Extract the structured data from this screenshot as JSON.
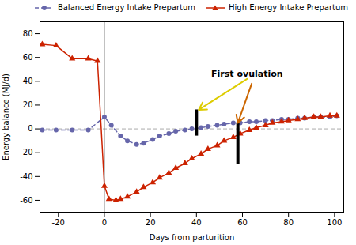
{
  "chart_data": {
    "type": "line",
    "xlabel": "Days from parturition",
    "ylabel": "Energy balance (MJ/d)",
    "xlim": [
      -28,
      104
    ],
    "ylim": [
      -70,
      90
    ],
    "xticks": [
      -20,
      0,
      20,
      40,
      60,
      80,
      100
    ],
    "yticks": [
      -60,
      -40,
      -20,
      0,
      20,
      40,
      60,
      80
    ],
    "legend": "upper right",
    "series": [
      {
        "name": "Balanced Energy Intake Prepartum",
        "color": "#6666aa",
        "marker": "circle",
        "line_style": "dashed",
        "x": [
          -27,
          -21,
          -14,
          -7,
          0,
          3,
          7,
          10,
          14,
          17,
          21,
          24,
          28,
          31,
          35,
          38,
          42,
          45,
          49,
          52,
          56,
          59,
          63,
          66,
          70,
          73,
          77,
          80,
          84,
          87,
          91,
          94,
          98,
          101
        ],
        "values": [
          -1,
          -1,
          -1,
          -1,
          10,
          3,
          -6,
          -10,
          -13,
          -12,
          -9,
          -6,
          -4,
          -2,
          -1,
          0,
          1,
          2,
          3,
          4,
          5,
          5,
          6,
          6,
          7,
          7,
          8,
          8,
          9,
          9,
          10,
          10,
          10,
          11
        ]
      },
      {
        "name": "High Energy Intake Prepartum",
        "color": "#cc2200",
        "marker": "triangle",
        "line_style": "solid",
        "x": [
          -27,
          -21,
          -14,
          -7,
          -3,
          0,
          2,
          5,
          7,
          10,
          14,
          17,
          21,
          24,
          28,
          31,
          35,
          38,
          42,
          45,
          49,
          52,
          56,
          59,
          63,
          66,
          70,
          73,
          77,
          80,
          84,
          87,
          91,
          94,
          98,
          101
        ],
        "values": [
          71,
          70,
          59,
          59,
          57,
          -48,
          -59,
          -60,
          -59,
          -57,
          -53,
          -49,
          -45,
          -41,
          -37,
          -33,
          -29,
          -25,
          -21,
          -17,
          -14,
          -10,
          -7,
          -4,
          -1,
          1,
          3,
          5,
          6,
          7,
          8,
          9,
          10,
          10,
          11,
          11
        ]
      }
    ],
    "hlines": [
      {
        "y": 0,
        "color": "#aaaaaa",
        "line_style": "dashed"
      }
    ],
    "vlines": [
      {
        "x": 0,
        "color": "#777777",
        "line_style": "solid"
      }
    ],
    "vertical_bars": [
      {
        "x": 40,
        "y1": -6,
        "y2": 16,
        "color": "#000000"
      },
      {
        "x": 58,
        "y1": -30,
        "y2": 5,
        "color": "#000000"
      }
    ],
    "annotations": [
      {
        "text": "First ovulation",
        "x": 62,
        "y": 44
      }
    ],
    "arrows": [
      {
        "x1": 62,
        "y1": 42,
        "x2": 41,
        "y2": 16,
        "color": "#ddcc00"
      },
      {
        "x1": 64,
        "y1": 38,
        "x2": 58,
        "y2": 5,
        "color": "#cc6600"
      }
    ]
  }
}
